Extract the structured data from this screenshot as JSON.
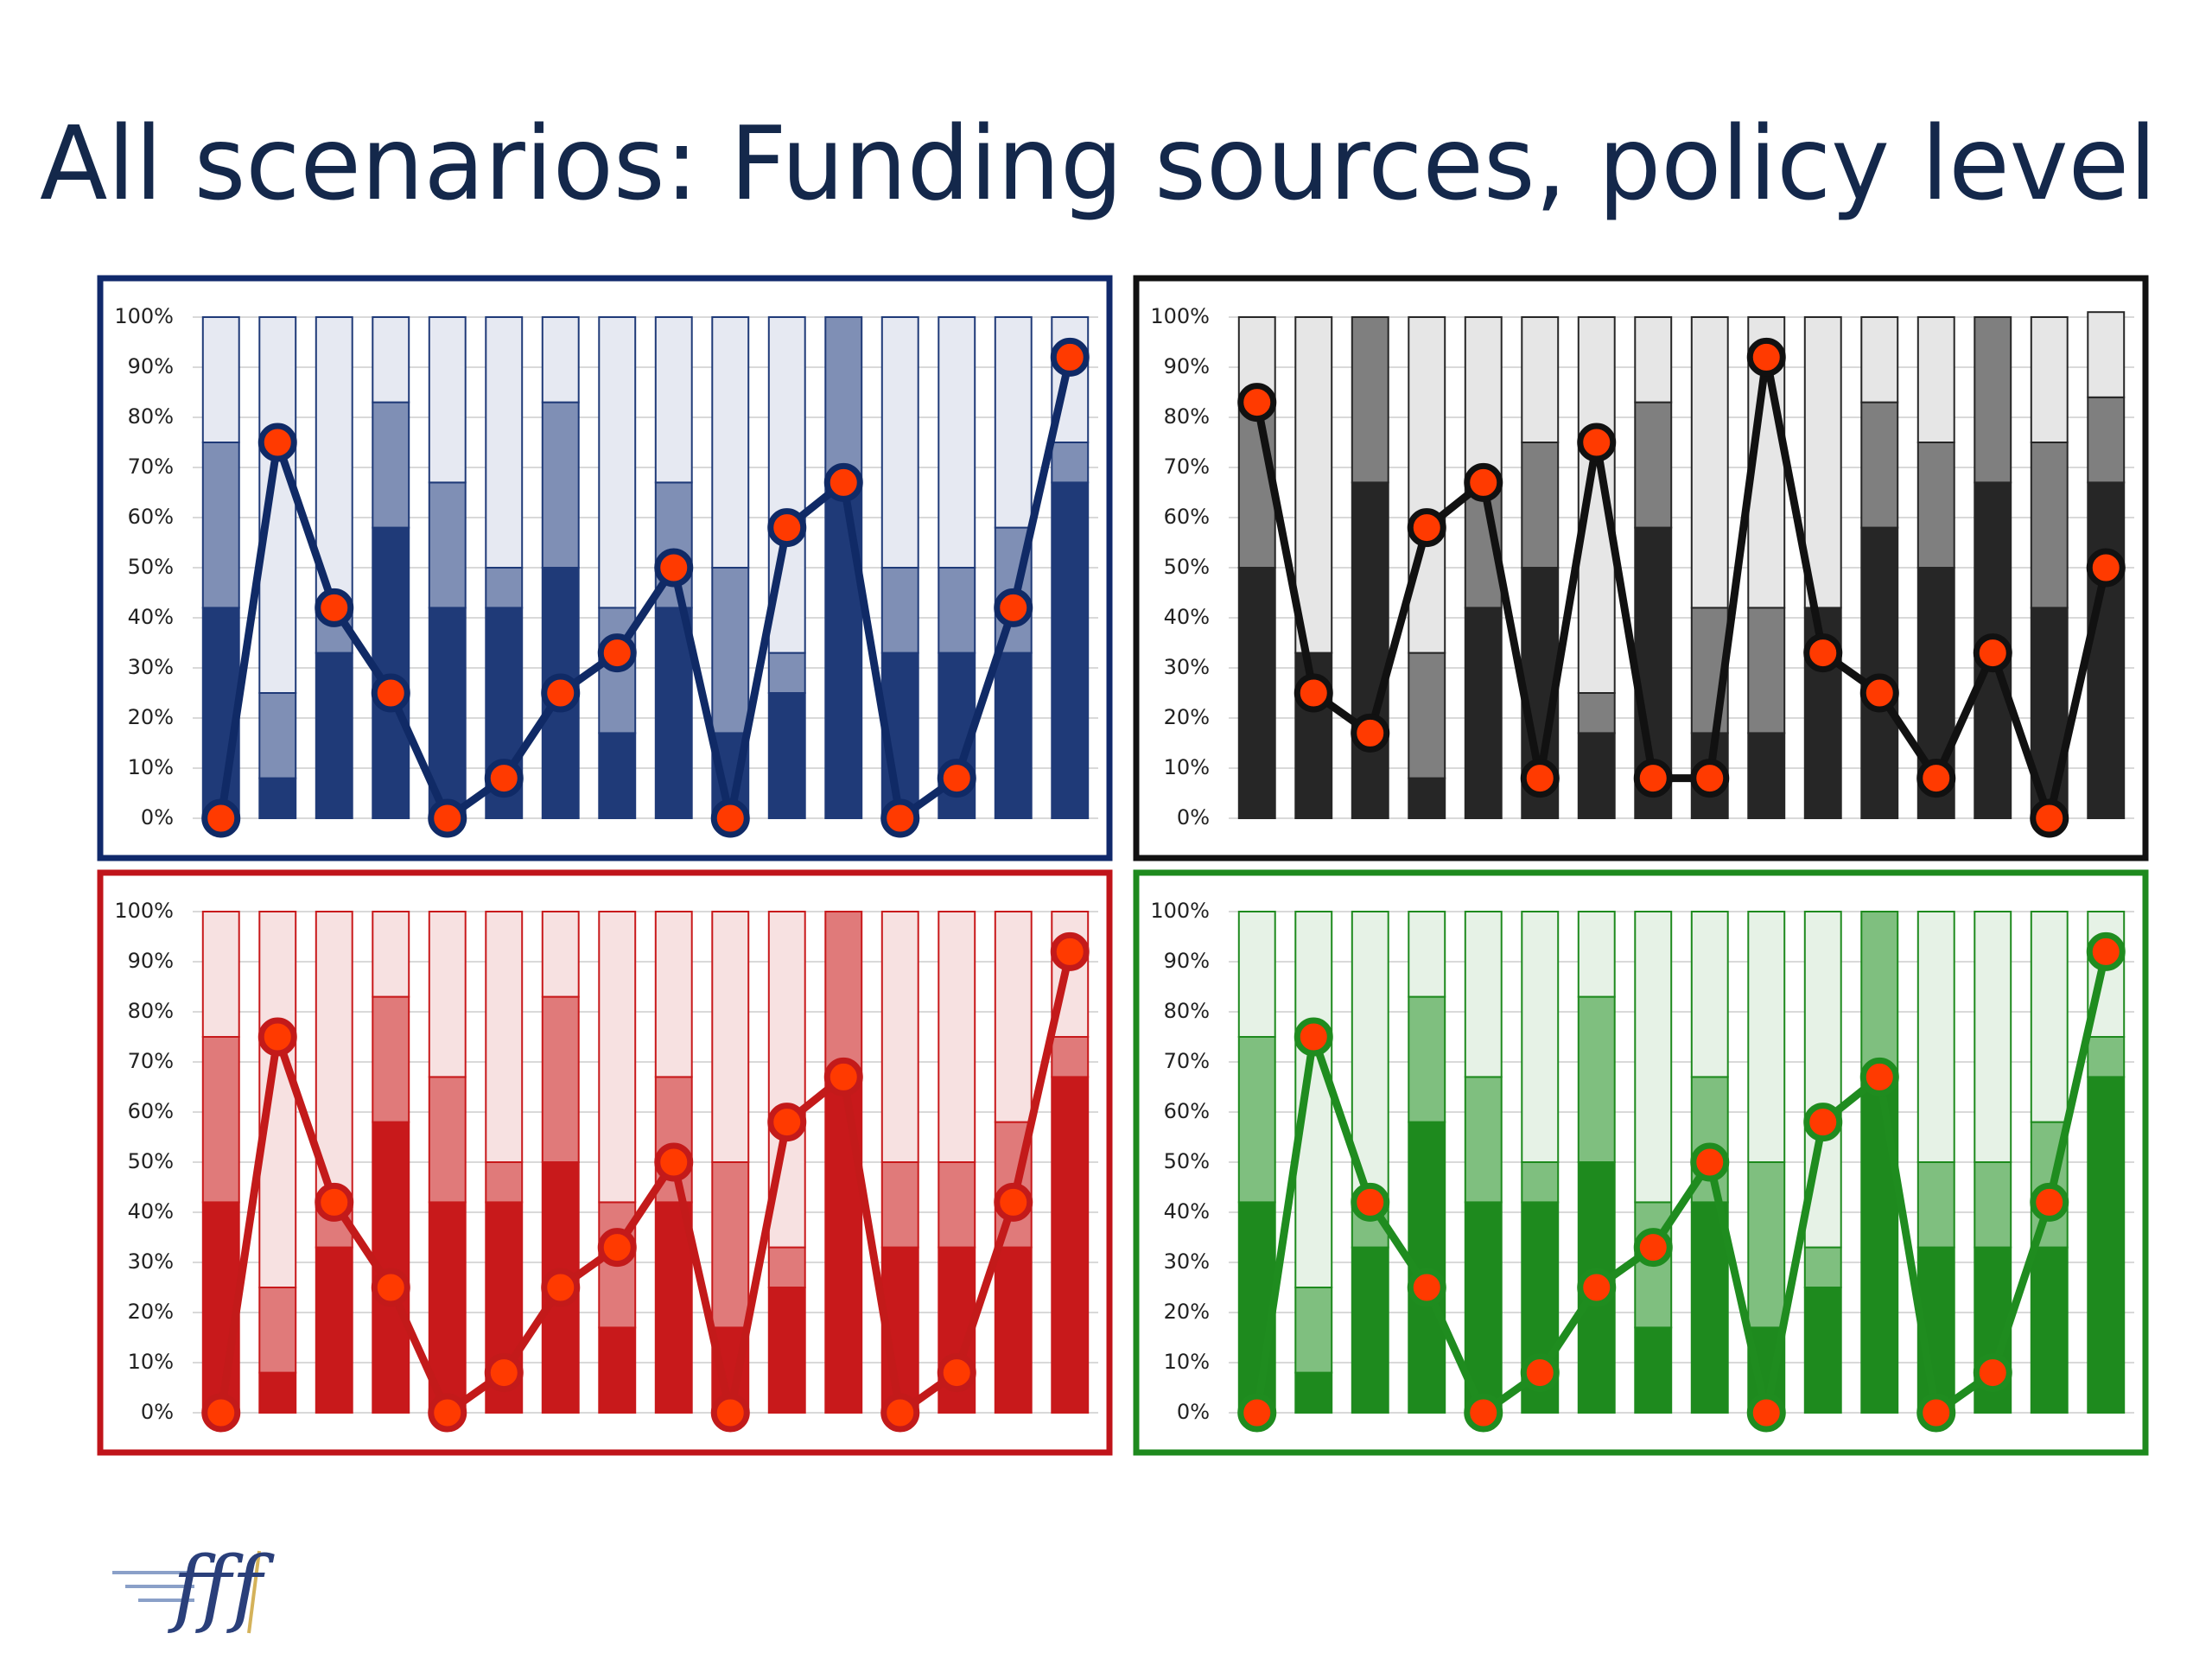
{
  "title": "All scenarios: Funding sources, policy level",
  "logo": {
    "text": "fff"
  },
  "chart_data": [
    {
      "type": "bar",
      "stacked": true,
      "frame_color": "#10296b",
      "grid": true,
      "ylim": [
        0,
        100
      ],
      "yticks": [
        {
          "value": 0,
          "label": "0%"
        },
        {
          "value": 10,
          "label": "10%"
        },
        {
          "value": 20,
          "label": "20%"
        },
        {
          "value": 30,
          "label": "30%"
        },
        {
          "value": 40,
          "label": "40%"
        },
        {
          "value": 50,
          "label": "50%"
        },
        {
          "value": 60,
          "label": "60%"
        },
        {
          "value": 70,
          "label": "70%"
        },
        {
          "value": 80,
          "label": "80%"
        },
        {
          "value": 90,
          "label": "90%"
        },
        {
          "value": 100,
          "label": "100%"
        }
      ],
      "series": [
        {
          "color": "#1f3a78",
          "values": [
            42,
            8,
            33,
            58,
            42,
            42,
            50,
            17,
            42,
            17,
            25,
            67,
            33,
            33,
            33,
            67
          ]
        },
        {
          "color": "#7f8fb5",
          "values": [
            33,
            17,
            8,
            25,
            25,
            8,
            33,
            25,
            25,
            33,
            8,
            33,
            17,
            17,
            25,
            8
          ]
        },
        {
          "color": "#e6e9f2",
          "values": [
            25,
            75,
            59,
            17,
            33,
            50,
            17,
            58,
            33,
            50,
            67,
            0,
            50,
            50,
            42,
            25
          ]
        },
        {
          "type": "line",
          "color": "#102a66",
          "marker_color": "#ff3a00",
          "values": [
            0,
            75,
            42,
            25,
            0,
            8,
            25,
            33,
            50,
            0,
            58,
            67,
            0,
            8,
            42,
            92
          ]
        }
      ]
    },
    {
      "type": "bar",
      "stacked": true,
      "frame_color": "#111111",
      "grid": true,
      "ylim": [
        0,
        100
      ],
      "yticks": [
        {
          "value": 0,
          "label": "0%"
        },
        {
          "value": 10,
          "label": "10%"
        },
        {
          "value": 20,
          "label": "20%"
        },
        {
          "value": 30,
          "label": "30%"
        },
        {
          "value": 40,
          "label": "40%"
        },
        {
          "value": 50,
          "label": "50%"
        },
        {
          "value": 60,
          "label": "60%"
        },
        {
          "value": 70,
          "label": "70%"
        },
        {
          "value": 80,
          "label": "80%"
        },
        {
          "value": 90,
          "label": "90%"
        },
        {
          "value": 100,
          "label": "100%"
        }
      ],
      "series": [
        {
          "color": "#262626",
          "values": [
            50,
            33,
            67,
            8,
            42,
            50,
            17,
            58,
            17,
            17,
            42,
            58,
            50,
            67,
            42,
            67
          ]
        },
        {
          "color": "#7f7f7f",
          "values": [
            33,
            0,
            33,
            25,
            25,
            25,
            8,
            25,
            25,
            25,
            0,
            25,
            25,
            33,
            33,
            17
          ]
        },
        {
          "color": "#e6e6e6",
          "values": [
            17,
            67,
            0,
            67,
            33,
            25,
            75,
            17,
            58,
            58,
            58,
            17,
            25,
            0,
            25,
            17
          ]
        },
        {
          "type": "line",
          "color": "#111111",
          "marker_color": "#ff3a00",
          "values": [
            83,
            25,
            17,
            58,
            67,
            8,
            75,
            8,
            8,
            92,
            33,
            25,
            8,
            33,
            0,
            50
          ]
        }
      ]
    },
    {
      "type": "bar",
      "stacked": true,
      "frame_color": "#c0141a",
      "grid": true,
      "ylim": [
        0,
        100
      ],
      "yticks": [
        {
          "value": 0,
          "label": "0%"
        },
        {
          "value": 10,
          "label": "10%"
        },
        {
          "value": 20,
          "label": "20%"
        },
        {
          "value": 30,
          "label": "30%"
        },
        {
          "value": 40,
          "label": "40%"
        },
        {
          "value": 50,
          "label": "50%"
        },
        {
          "value": 60,
          "label": "60%"
        },
        {
          "value": 70,
          "label": "70%"
        },
        {
          "value": 80,
          "label": "80%"
        },
        {
          "value": 90,
          "label": "90%"
        },
        {
          "value": 100,
          "label": "100%"
        }
      ],
      "series": [
        {
          "color": "#c8191b",
          "values": [
            42,
            8,
            33,
            58,
            42,
            42,
            50,
            17,
            42,
            17,
            25,
            67,
            33,
            33,
            33,
            67
          ]
        },
        {
          "color": "#e07a7a",
          "values": [
            33,
            17,
            8,
            25,
            25,
            8,
            33,
            25,
            25,
            33,
            8,
            33,
            17,
            17,
            25,
            8
          ]
        },
        {
          "color": "#f7e1e1",
          "values": [
            25,
            75,
            59,
            17,
            33,
            50,
            17,
            58,
            33,
            50,
            67,
            0,
            50,
            50,
            42,
            25
          ]
        },
        {
          "type": "line",
          "color": "#c31a1a",
          "marker_color": "#ff3a00",
          "values": [
            0,
            75,
            42,
            25,
            0,
            8,
            25,
            33,
            50,
            0,
            58,
            67,
            0,
            8,
            42,
            92
          ]
        }
      ]
    },
    {
      "type": "bar",
      "stacked": true,
      "frame_color": "#1e8a1e",
      "grid": true,
      "ylim": [
        0,
        100
      ],
      "yticks": [
        {
          "value": 0,
          "label": "0%"
        },
        {
          "value": 10,
          "label": "10%"
        },
        {
          "value": 20,
          "label": "20%"
        },
        {
          "value": 30,
          "label": "30%"
        },
        {
          "value": 40,
          "label": "40%"
        },
        {
          "value": 50,
          "label": "50%"
        },
        {
          "value": 60,
          "label": "60%"
        },
        {
          "value": 70,
          "label": "70%"
        },
        {
          "value": 80,
          "label": "80%"
        },
        {
          "value": 90,
          "label": "90%"
        },
        {
          "value": 100,
          "label": "100%"
        }
      ],
      "series": [
        {
          "color": "#1e8a1e",
          "values": [
            42,
            8,
            33,
            58,
            42,
            42,
            50,
            17,
            42,
            17,
            25,
            67,
            33,
            33,
            33,
            67
          ]
        },
        {
          "color": "#7fbf7f",
          "values": [
            33,
            17,
            8,
            25,
            25,
            8,
            33,
            25,
            25,
            33,
            8,
            33,
            17,
            17,
            25,
            8
          ]
        },
        {
          "color": "#e6f2e6",
          "values": [
            25,
            75,
            59,
            17,
            33,
            50,
            17,
            58,
            33,
            50,
            67,
            0,
            50,
            50,
            42,
            25
          ]
        },
        {
          "type": "line",
          "color": "#1f8c1f",
          "marker_color": "#ff3a00",
          "values": [
            0,
            75,
            42,
            25,
            0,
            8,
            25,
            33,
            50,
            0,
            58,
            67,
            0,
            8,
            42,
            92
          ]
        }
      ]
    }
  ]
}
